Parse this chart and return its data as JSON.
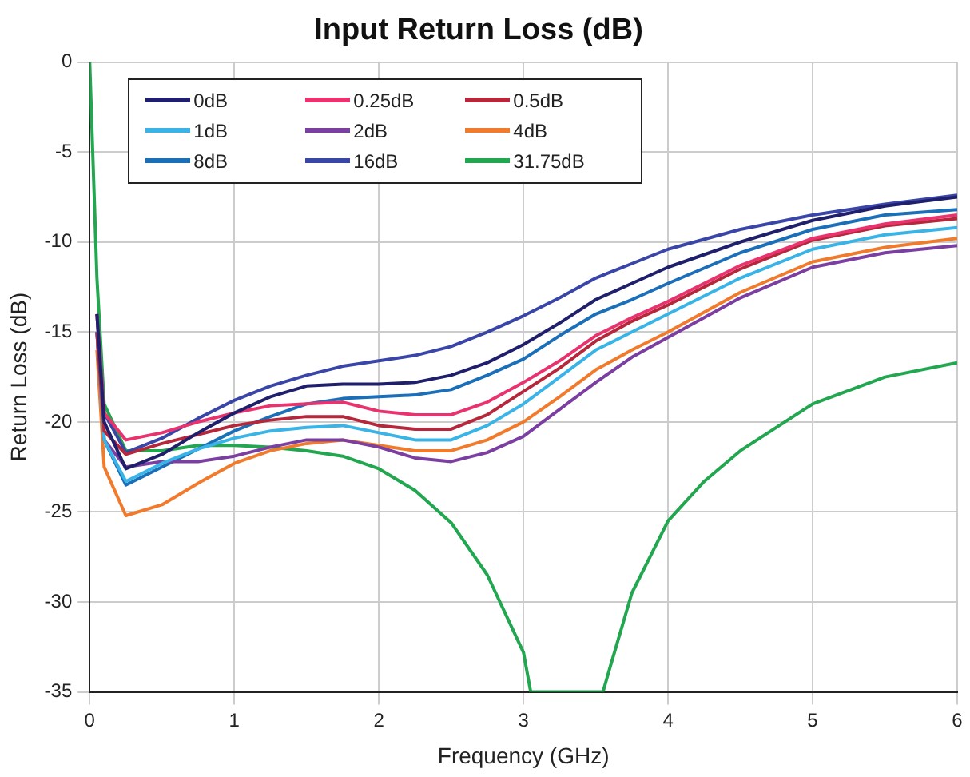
{
  "chart_data": {
    "type": "line",
    "title": "Input Return Loss (dB)",
    "xlabel": "Frequency (GHz)",
    "ylabel": "Return Loss (dB)",
    "x": [
      0.05,
      0.1,
      0.25,
      0.5,
      0.75,
      1,
      1.25,
      1.5,
      1.75,
      2,
      2.25,
      2.5,
      2.75,
      3,
      3.25,
      3.5,
      3.75,
      4,
      4.5,
      5,
      5.5,
      6
    ],
    "series": [
      {
        "name": "0dB",
        "color": "#1f1f6b",
        "values": [
          -14,
          -20,
          -22.6,
          -21.8,
          -20.6,
          -19.5,
          -18.6,
          -18.0,
          -17.9,
          -17.9,
          -17.8,
          -17.4,
          -16.7,
          -15.7,
          -14.5,
          -13.2,
          -12.3,
          -11.4,
          -10.0,
          -8.8,
          -8.0,
          -7.5
        ]
      },
      {
        "name": "0.25dB",
        "color": "#e8336e",
        "values": [
          -14,
          -19.5,
          -21.0,
          -20.6,
          -20.0,
          -19.5,
          -19.1,
          -19.0,
          -18.9,
          -19.4,
          -19.6,
          -19.6,
          -18.9,
          -17.8,
          -16.6,
          -15.2,
          -14.2,
          -13.3,
          -11.3,
          -9.8,
          -9.0,
          -8.5
        ]
      },
      {
        "name": "0.5dB",
        "color": "#b5273a",
        "values": [
          -15,
          -20.5,
          -21.8,
          -21.2,
          -20.7,
          -20.2,
          -19.9,
          -19.7,
          -19.7,
          -20.2,
          -20.4,
          -20.4,
          -19.6,
          -18.3,
          -17.0,
          -15.5,
          -14.4,
          -13.5,
          -11.5,
          -9.9,
          -9.1,
          -8.7
        ]
      },
      {
        "name": "1dB",
        "color": "#3ab4e6",
        "values": [
          -15,
          -21,
          -23.3,
          -22.3,
          -21.5,
          -20.9,
          -20.5,
          -20.3,
          -20.2,
          -20.6,
          -21.0,
          -21.0,
          -20.2,
          -19.0,
          -17.5,
          -16.0,
          -15.0,
          -14.0,
          -12.0,
          -10.4,
          -9.6,
          -9.2
        ]
      },
      {
        "name": "2dB",
        "color": "#7a3fa0",
        "values": [
          -15,
          -21,
          -22.5,
          -22.2,
          -22.2,
          -21.9,
          -21.4,
          -21.0,
          -21.0,
          -21.4,
          -22.0,
          -22.2,
          -21.7,
          -20.8,
          -19.3,
          -17.8,
          -16.4,
          -15.3,
          -13.1,
          -11.4,
          -10.6,
          -10.2
        ]
      },
      {
        "name": "4dB",
        "color": "#f07b2c",
        "values": [
          -16,
          -22.5,
          -25.2,
          -24.6,
          -23.4,
          -22.3,
          -21.6,
          -21.2,
          -21.0,
          -21.3,
          -21.6,
          -21.6,
          -21.0,
          -20.0,
          -18.6,
          -17.1,
          -16.0,
          -15.0,
          -12.8,
          -11.1,
          -10.3,
          -9.8
        ]
      },
      {
        "name": "8dB",
        "color": "#1a6fb8",
        "values": [
          -15,
          -21,
          -23.5,
          -22.5,
          -21.5,
          -20.5,
          -19.7,
          -19.0,
          -18.7,
          -18.6,
          -18.5,
          -18.2,
          -17.4,
          -16.5,
          -15.2,
          -14.0,
          -13.2,
          -12.3,
          -10.6,
          -9.3,
          -8.5,
          -8.2
        ]
      },
      {
        "name": "16dB",
        "color": "#3a45a8",
        "values": [
          -14,
          -19.5,
          -21.7,
          -20.9,
          -19.8,
          -18.8,
          -18.0,
          -17.4,
          -16.9,
          -16.6,
          -16.3,
          -15.8,
          -15.0,
          -14.1,
          -13.1,
          -12.0,
          -11.2,
          -10.4,
          -9.3,
          -8.5,
          -7.9,
          -7.4
        ]
      },
      {
        "name": "31.75dB",
        "color": "#22a650",
        "x": [
          0,
          0.05,
          0.1,
          0.25,
          0.5,
          0.75,
          1,
          1.25,
          1.5,
          1.75,
          2,
          2.25,
          2.5,
          2.75,
          3,
          3.05,
          3.55,
          3.6,
          3.75,
          4,
          4.25,
          4.5,
          5,
          5.5,
          6
        ],
        "values": [
          0,
          -12,
          -19,
          -21.6,
          -21.6,
          -21.3,
          -21.3,
          -21.4,
          -21.6,
          -21.9,
          -22.6,
          -23.8,
          -25.6,
          -28.5,
          -32.8,
          -35,
          -35,
          -33.6,
          -29.5,
          -25.5,
          -23.3,
          -21.6,
          -19.0,
          -17.5,
          -16.7
        ]
      }
    ],
    "xlim": [
      0,
      6
    ],
    "xticks": [
      0,
      1,
      2,
      3,
      4,
      5,
      6
    ],
    "ylim": [
      -35,
      0
    ],
    "yticks": [
      -35,
      -30,
      -25,
      -20,
      -15,
      -10,
      -5,
      0
    ],
    "grid": true,
    "legend": "top left",
    "marker": "none",
    "line_style": "solid"
  }
}
